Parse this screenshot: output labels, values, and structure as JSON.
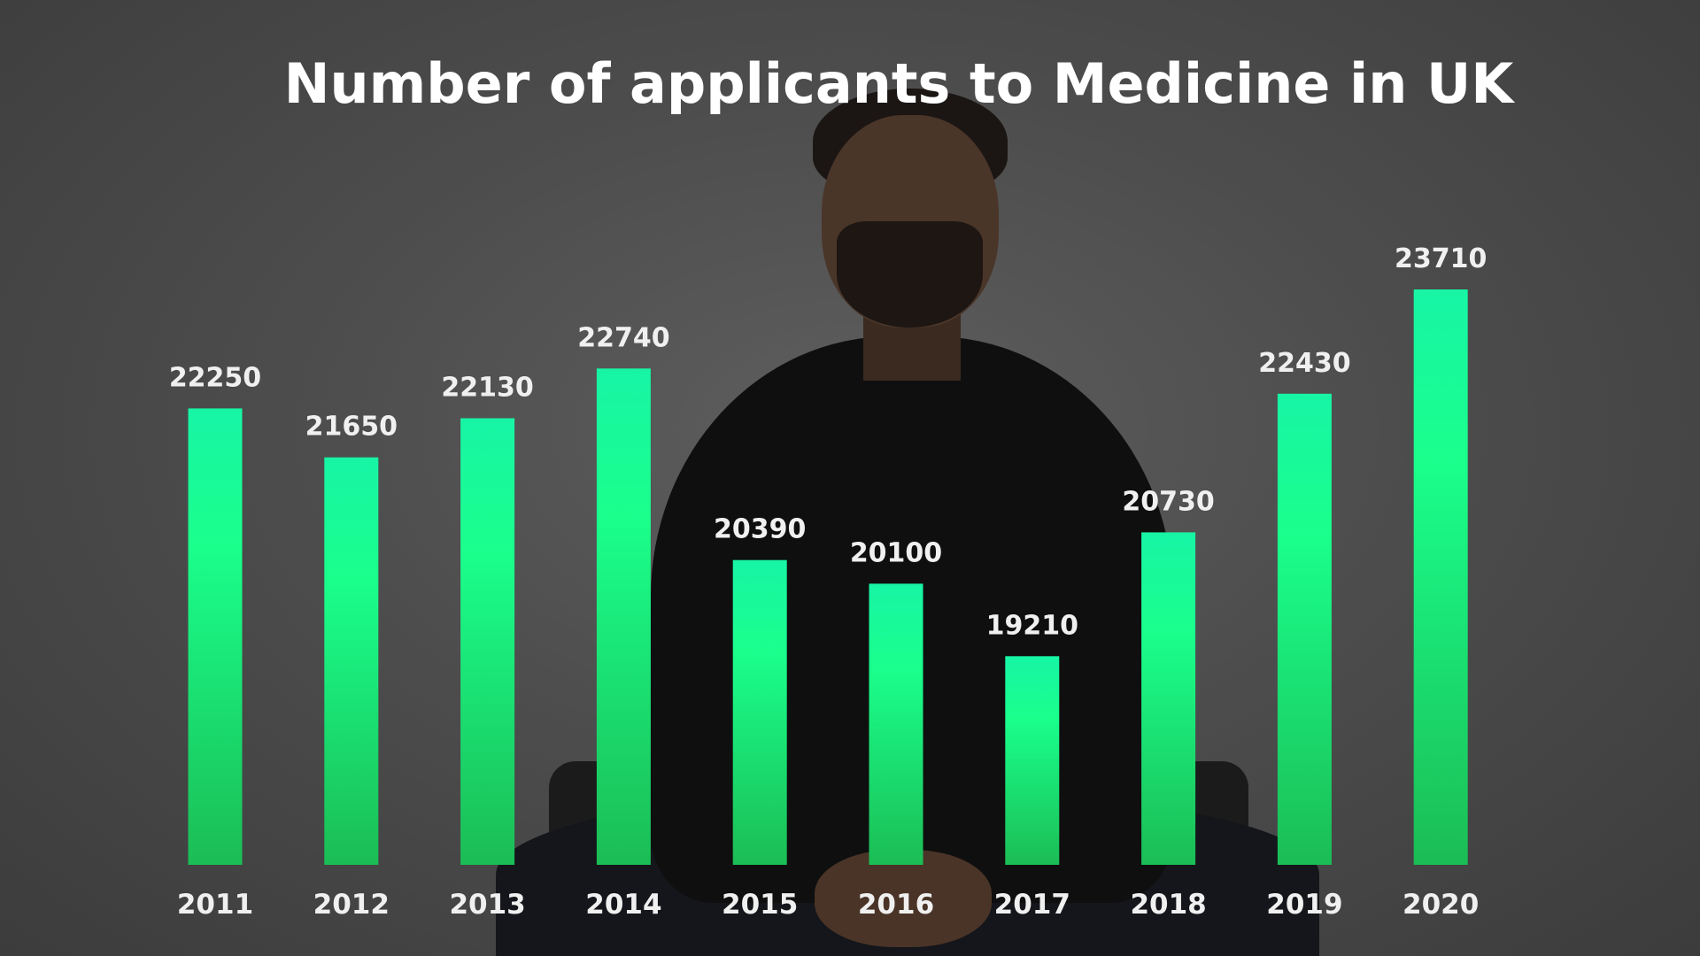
{
  "chart_data": {
    "type": "bar",
    "title": "Number of applicants to Medicine in UK",
    "xlabel": "",
    "ylabel": "",
    "categories": [
      "2011",
      "2012",
      "2013",
      "2014",
      "2015",
      "2016",
      "2017",
      "2018",
      "2019",
      "2020"
    ],
    "values": [
      22250,
      21650,
      22130,
      22740,
      20390,
      20100,
      19210,
      20730,
      22430,
      23710
    ],
    "value_labels": [
      "22250",
      "21650",
      "22130",
      "22740",
      "20390",
      "20100",
      "19210",
      "20730",
      "22430",
      "23710"
    ],
    "ylim": [
      16650,
      23710
    ],
    "grid": false,
    "legend": "none",
    "bar_gradient": [
      "#17f5a5",
      "#1aff8c",
      "#1bbd55"
    ],
    "label_color": "#f0f0f0",
    "title_color": "#ffffff"
  }
}
